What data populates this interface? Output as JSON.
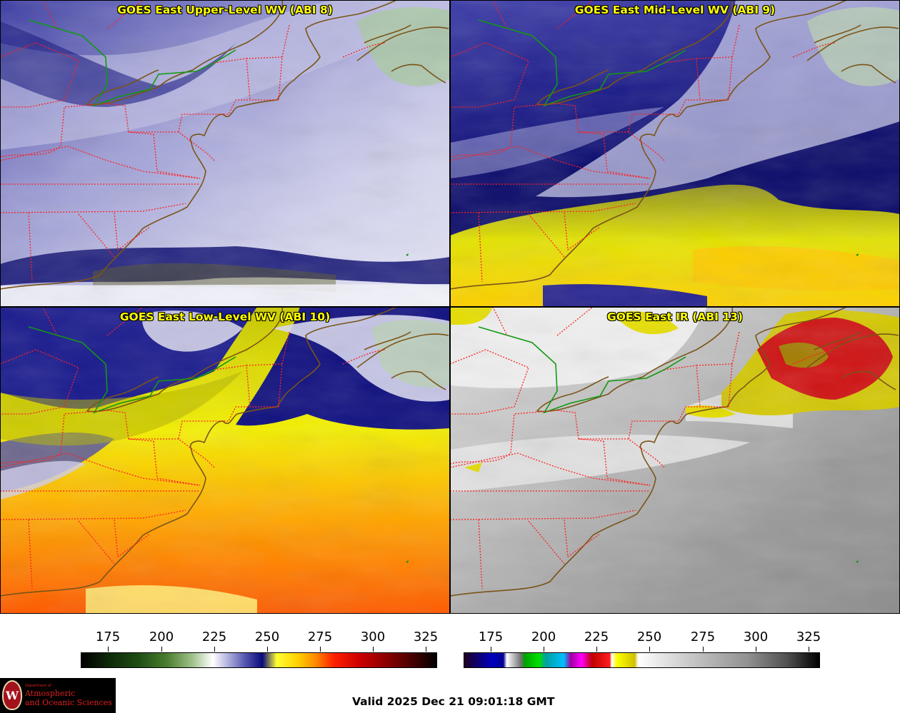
{
  "panels": [
    {
      "title": "GOES East Upper-Level WV (ABI 8)",
      "scheme": "wv-upper"
    },
    {
      "title": "GOES East Mid-Level WV (ABI 9)",
      "scheme": "wv-mid"
    },
    {
      "title": "GOES East Low-Level WV (ABI 10)",
      "scheme": "wv-low"
    },
    {
      "title": "GOES East IR (ABI 13)",
      "scheme": "ir"
    }
  ],
  "colorbars": {
    "wv": {
      "ticks": [
        "175",
        "200",
        "225",
        "250",
        "275",
        "300",
        "325"
      ]
    },
    "ir": {
      "ticks": [
        "175",
        "200",
        "225",
        "250",
        "275",
        "300",
        "325"
      ]
    }
  },
  "logo": {
    "dept": "Department of",
    "line1": "Atmospheric",
    "line2": "and Oceanic Sciences",
    "mark": "W"
  },
  "footer": {
    "valid": "Valid 2025 Dec 21 09:01:18 GMT"
  },
  "colors": {
    "state_border": "#ff2020",
    "coastline": "#7a5418",
    "us_canada_border": "#119911",
    "title_text": "#ffff00"
  }
}
